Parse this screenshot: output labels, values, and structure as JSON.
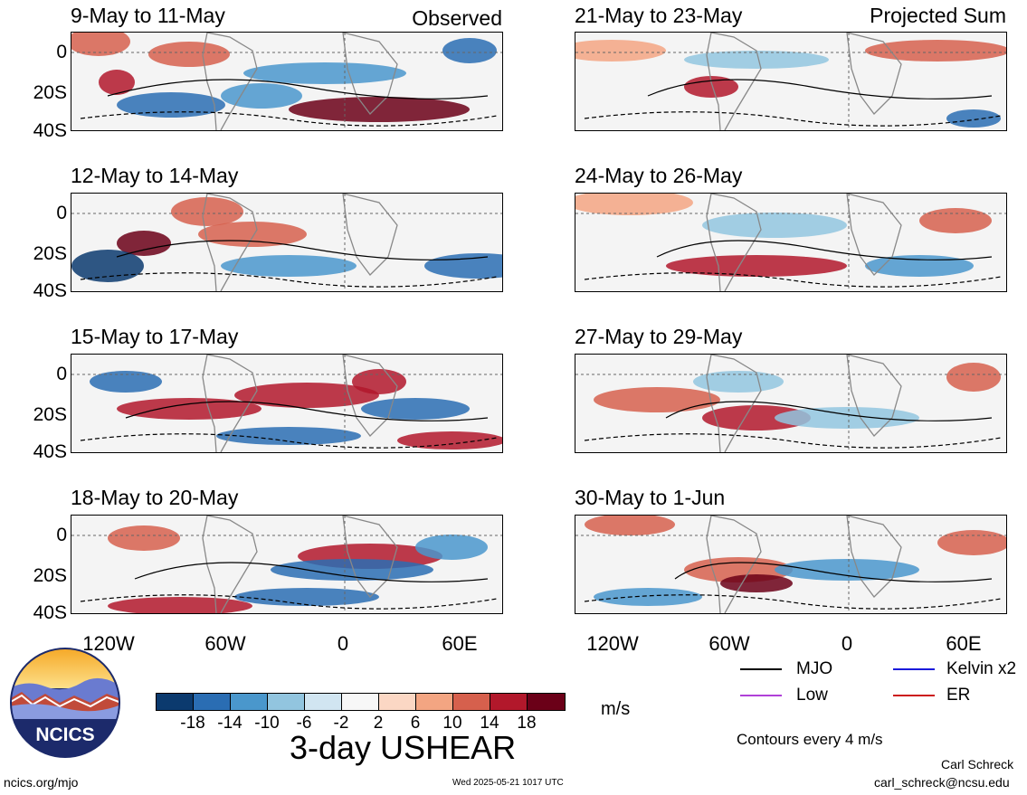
{
  "left_header": "Observed",
  "right_header": "Projected Sum",
  "panels_left": [
    {
      "title": "9-May to 11-May"
    },
    {
      "title": "12-May to 14-May"
    },
    {
      "title": "15-May to 17-May"
    },
    {
      "title": "18-May to 20-May"
    }
  ],
  "panels_right": [
    {
      "title": "21-May to 23-May"
    },
    {
      "title": "24-May to 26-May"
    },
    {
      "title": "27-May to 29-May"
    },
    {
      "title": "30-May to 1-Jun"
    }
  ],
  "y_labels": [
    "0",
    "20S",
    "40S"
  ],
  "x_labels": [
    "120W",
    "60W",
    "0",
    "60E"
  ],
  "colorbar": {
    "unit": "m/s",
    "labels": [
      "-18",
      "-14",
      "-10",
      "-6",
      "-2",
      "2",
      "6",
      "10",
      "14",
      "18"
    ],
    "colors": [
      "#0b3a6e",
      "#2a6db3",
      "#4a97cc",
      "#92c5df",
      "#d1e5f1",
      "#f7f7f7",
      "#fbd7c4",
      "#f3a582",
      "#d6604d",
      "#b2182b",
      "#6b0018"
    ]
  },
  "chart_title": "3-day USHEAR",
  "logo": {
    "text": "NCICS"
  },
  "legend": {
    "mjo": "MJO",
    "kelvin": "Kelvin x2",
    "low": "Low",
    "er": "ER",
    "colors": {
      "mjo": "#000000",
      "kelvin": "#1a1adb",
      "low": "#b040d8",
      "er": "#cc1a1a"
    }
  },
  "contours_note": "Contours every 4 m/s",
  "credit_name": "Carl Schreck",
  "credit_email": "carl_schreck@ncsu.edu",
  "website": "ncics.org/mjo",
  "timestamp": "Wed 2025-05-21 1017 UTC"
}
